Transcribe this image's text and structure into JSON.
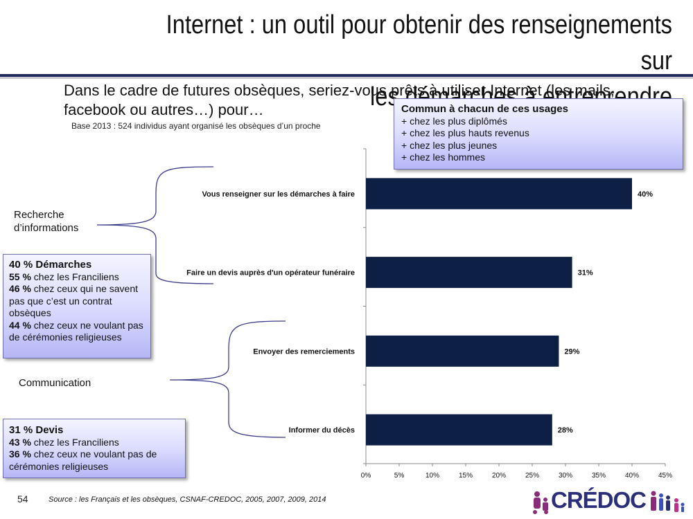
{
  "header": {
    "title_line1": "Internet : un outil pour obtenir des renseignements sur",
    "title_line2": "les démarches à entreprendre"
  },
  "question": "Dans le cadre de futures obsèques, seriez-vous prêts à utiliser Internet (les mails, facebook ou autres…) pour…",
  "base": "Base 2013 : 524 individus ayant organisé les obsèques d’un proche",
  "common_box": {
    "title": "Commun à chacun de ces usages",
    "lines": [
      "+ chez les plus diplômés",
      "+ chez les plus hauts revenus",
      "+ chez les plus jeunes",
      "+ chez les hommes"
    ]
  },
  "groups": {
    "recherche": "Recherche d’informations",
    "communication": "Communication"
  },
  "demarches_box": {
    "title": "40 % Démarches",
    "l1_bold": "55 %",
    "l1_text": " chez les Franciliens",
    "l2_bold": "46 %",
    "l2_text": " chez ceux qui ne savent pas que c’est un contrat obsèques",
    "l3_bold": "44 %",
    "l3_text": " chez ceux ne voulant pas de cérémonies religieuses"
  },
  "devis_box": {
    "title": "31 % Devis",
    "l1_bold": "43 %",
    "l1_text": " chez les Franciliens",
    "l2_bold": "36 %",
    "l2_text": " chez ceux ne voulant pas de cérémonies religieuses"
  },
  "chart_data": {
    "type": "bar",
    "orientation": "horizontal",
    "categories": [
      "Vous renseigner sur les démarches à faire",
      "Faire un devis auprès d'un opérateur funéraire",
      "Envoyer des remerciements",
      "Informer du décès"
    ],
    "values": [
      40,
      31,
      29,
      28
    ],
    "value_labels": [
      "40%",
      "31%",
      "29%",
      "28%"
    ],
    "xlim": [
      0,
      45
    ],
    "x_ticks": [
      "0%",
      "5%",
      "10%",
      "15%",
      "20%",
      "25%",
      "30%",
      "35%",
      "40%",
      "45%"
    ],
    "bar_color": "#0e1f45",
    "grid": false
  },
  "footer": {
    "page_number": "54",
    "source": "Source : les Français et les obsèques, CSNAF-CREDOC, 2005, 2007, 2009, 2014",
    "logo_text": "CRÉDOC"
  },
  "colors": {
    "accent": "#1f2a5c",
    "box_gradient_end": "#b6b6f6",
    "brace": "#3a3a8c",
    "logo_purple": "#8b2c7a"
  }
}
